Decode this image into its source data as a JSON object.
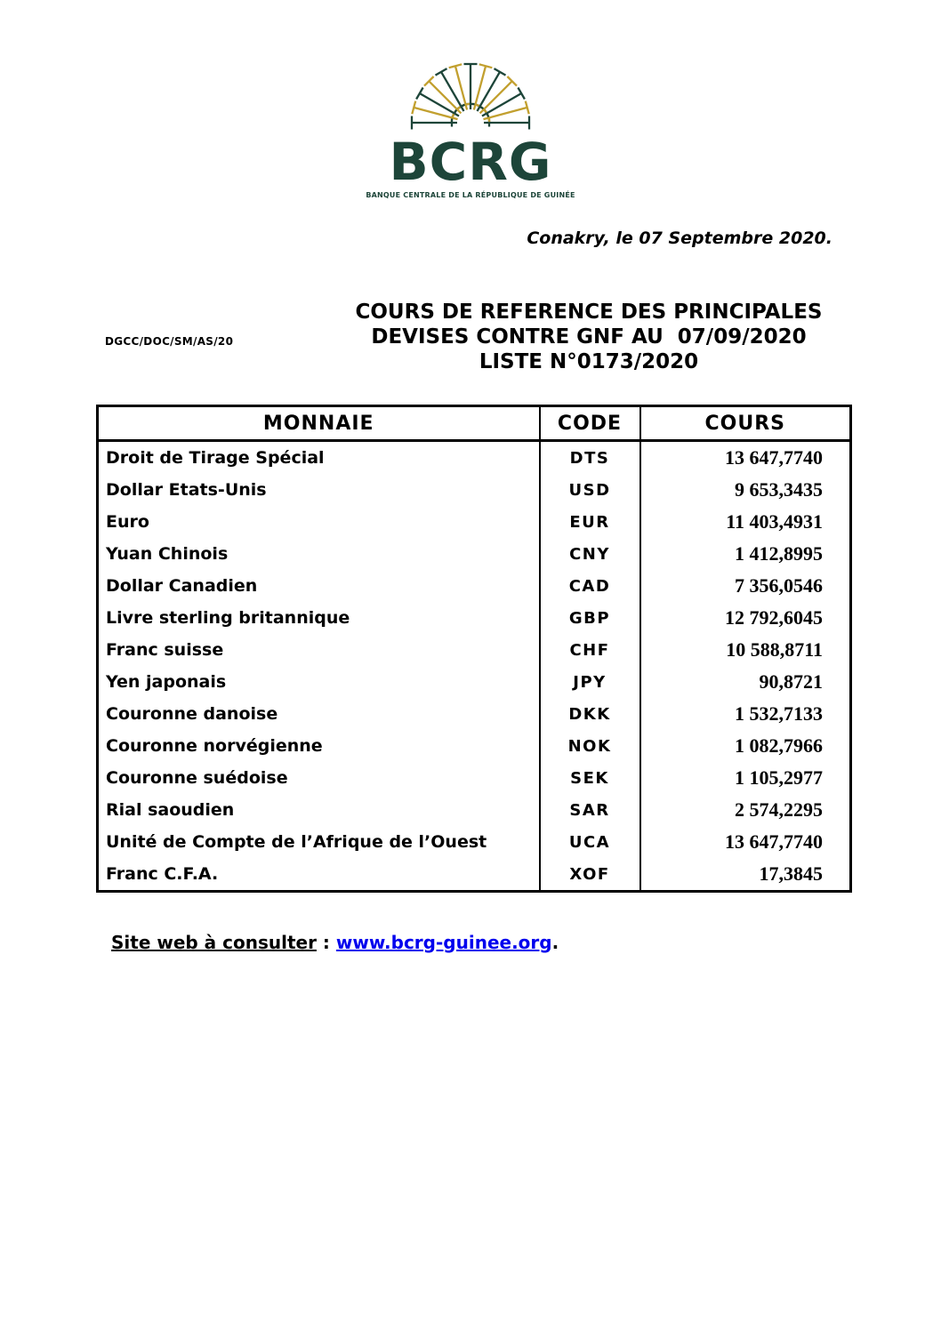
{
  "logo": {
    "title": "BCRG",
    "subtitle": "BANQUE CENTRALE DE LA RÉPUBLIQUE DE GUINÉE",
    "colors": {
      "green": "#1d4539",
      "gold": "#c2a02f"
    }
  },
  "header": {
    "dateline": "Conakry, le 07 Septembre 2020.",
    "reference": "DGCC/DOC/SM/AS/20",
    "title_lines": [
      "COURS DE REFERENCE DES PRINCIPALES",
      "DEVISES CONTRE GNF AU  07/09/2020",
      "LISTE N°0173/2020"
    ]
  },
  "table": {
    "columns": [
      "MONNAIE",
      "CODE",
      "COURS"
    ],
    "rows": [
      {
        "monnaie": "Droit de Tirage Spécial",
        "code": "DTS",
        "cours": "13 647,7740"
      },
      {
        "monnaie": "Dollar Etats-Unis",
        "code": "USD",
        "cours": "9 653,3435"
      },
      {
        "monnaie": "Euro",
        "code": "EUR",
        "cours": "11 403,4931"
      },
      {
        "monnaie": "Yuan Chinois",
        "code": "CNY",
        "cours": "1 412,8995"
      },
      {
        "monnaie": "Dollar Canadien",
        "code": "CAD",
        "cours": "7 356,0546"
      },
      {
        "monnaie": "Livre sterling britannique",
        "code": "GBP",
        "cours": "12 792,6045"
      },
      {
        "monnaie": "Franc suisse",
        "code": "CHF",
        "cours": "10 588,8711"
      },
      {
        "monnaie": "Yen japonais",
        "code": "JPY",
        "cours": "90,8721"
      },
      {
        "monnaie": "Couronne danoise",
        "code": "DKK",
        "cours": "1 532,7133"
      },
      {
        "monnaie": "Couronne norvégienne",
        "code": "NOK",
        "cours": "1 082,7966"
      },
      {
        "monnaie": "Couronne suédoise",
        "code": "SEK",
        "cours": "1 105,2977"
      },
      {
        "monnaie": "Rial saoudien",
        "code": "SAR",
        "cours": "2 574,2295"
      },
      {
        "monnaie": "Unité de Compte de l’Afrique de l’Ouest",
        "code": "UCA",
        "cours": "13 647,7740"
      },
      {
        "monnaie": "Franc C.F.A.",
        "code": "XOF",
        "cours": "17,3845"
      }
    ]
  },
  "footer": {
    "label": "Site web à consulter",
    "separator": " : ",
    "link": "www.bcrg-guinee.org",
    "period": ".",
    "link_color": "#0000ee"
  }
}
